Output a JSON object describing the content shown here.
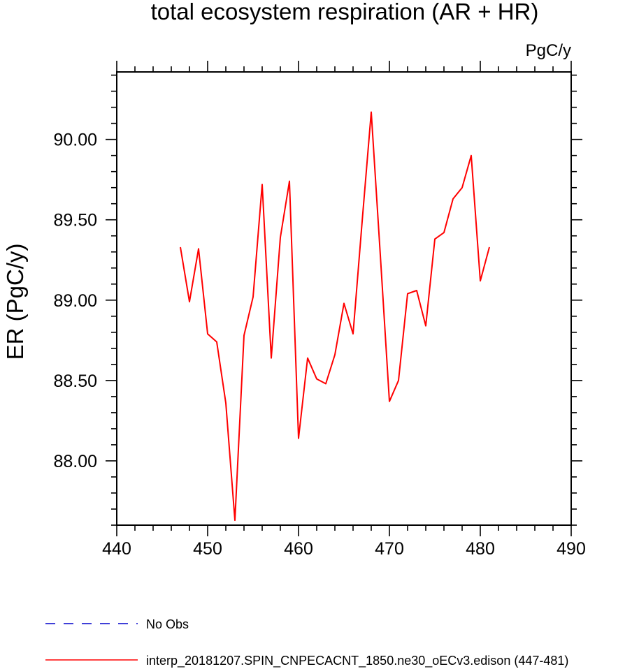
{
  "chart_data": {
    "type": "line",
    "title": "total ecosystem respiration (AR + HR)",
    "units": "PgC/y",
    "ylabel": "ER  (PgC/y)",
    "xlabel": "",
    "xlim": [
      440,
      490
    ],
    "ylim": [
      87.6,
      90.42
    ],
    "xticks": [
      440,
      450,
      460,
      470,
      480,
      490
    ],
    "xtick_labels": [
      "440",
      "450",
      "460",
      "470",
      "480",
      "490"
    ],
    "yticks": [
      88.0,
      88.5,
      89.0,
      89.5,
      90.0
    ],
    "ytick_labels": [
      "88.00",
      "88.50",
      "89.00",
      "89.50",
      "90.00"
    ],
    "grid": false,
    "legend_position": "bottom",
    "series": [
      {
        "name": "interp_20181207.SPIN_CNPECACNT_1850.ne30_oECv3.edison (447-481)",
        "color": "#ff0000",
        "line_style": "solid",
        "x": [
          447,
          448,
          449,
          450,
          451,
          452,
          453,
          454,
          455,
          456,
          457,
          458,
          459,
          460,
          461,
          462,
          463,
          464,
          465,
          466,
          467,
          468,
          469,
          470,
          471,
          472,
          473,
          474,
          475,
          476,
          477,
          478,
          479,
          480,
          481
        ],
        "y": [
          89.33,
          88.99,
          89.32,
          88.79,
          88.74,
          88.36,
          87.63,
          88.78,
          89.02,
          89.72,
          88.64,
          89.39,
          89.74,
          88.14,
          88.64,
          88.51,
          88.48,
          88.66,
          88.98,
          88.79,
          89.49,
          90.17,
          89.28,
          88.37,
          88.5,
          89.04,
          89.06,
          88.84,
          89.38,
          89.42,
          89.63,
          89.7,
          89.9,
          89.12,
          89.33
        ]
      }
    ],
    "legend": [
      {
        "label": "No Obs",
        "color": "#0000cc",
        "line_style": "dashed"
      },
      {
        "label": "interp_20181207.SPIN_CNPECACNT_1850.ne30_oECv3.edison (447-481)",
        "color": "#ff0000",
        "line_style": "solid"
      }
    ]
  }
}
